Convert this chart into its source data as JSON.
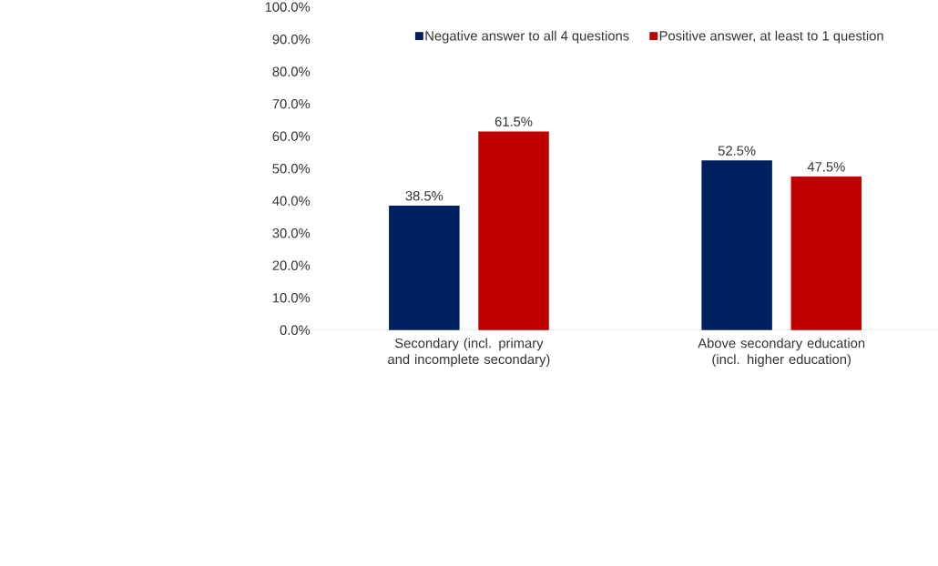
{
  "chart_data": {
    "type": "bar",
    "categories": [
      "Secondary (incl. primary and incomplete secondary)",
      "Above secondary education (incl. higher education)"
    ],
    "series": [
      {
        "name": "Negative answer to all 4 questions",
        "color": "#002060",
        "values": [
          38.5,
          52.5
        ],
        "value_labels": [
          "38.5%",
          "52.5%"
        ]
      },
      {
        "name": "Positive answer, at least to 1 question",
        "color": "#c00000",
        "values": [
          61.5,
          47.5
        ],
        "value_labels": [
          "61.5%",
          "47.5%"
        ]
      }
    ],
    "ylim": [
      0,
      100
    ],
    "yticks": [
      {
        "value": 0,
        "label": "0.0%"
      },
      {
        "value": 10,
        "label": "10.0%"
      },
      {
        "value": 20,
        "label": "20.0%"
      },
      {
        "value": 30,
        "label": "30.0%"
      },
      {
        "value": 40,
        "label": "40.0%"
      },
      {
        "value": 50,
        "label": "50.0%"
      },
      {
        "value": 60,
        "label": "60.0%"
      },
      {
        "value": 70,
        "label": "70.0%"
      },
      {
        "value": 80,
        "label": "80.0%"
      },
      {
        "value": 90,
        "label": "90.0%"
      },
      {
        "value": 100,
        "label": "100.0%"
      }
    ],
    "grid": false,
    "legend": "top"
  }
}
